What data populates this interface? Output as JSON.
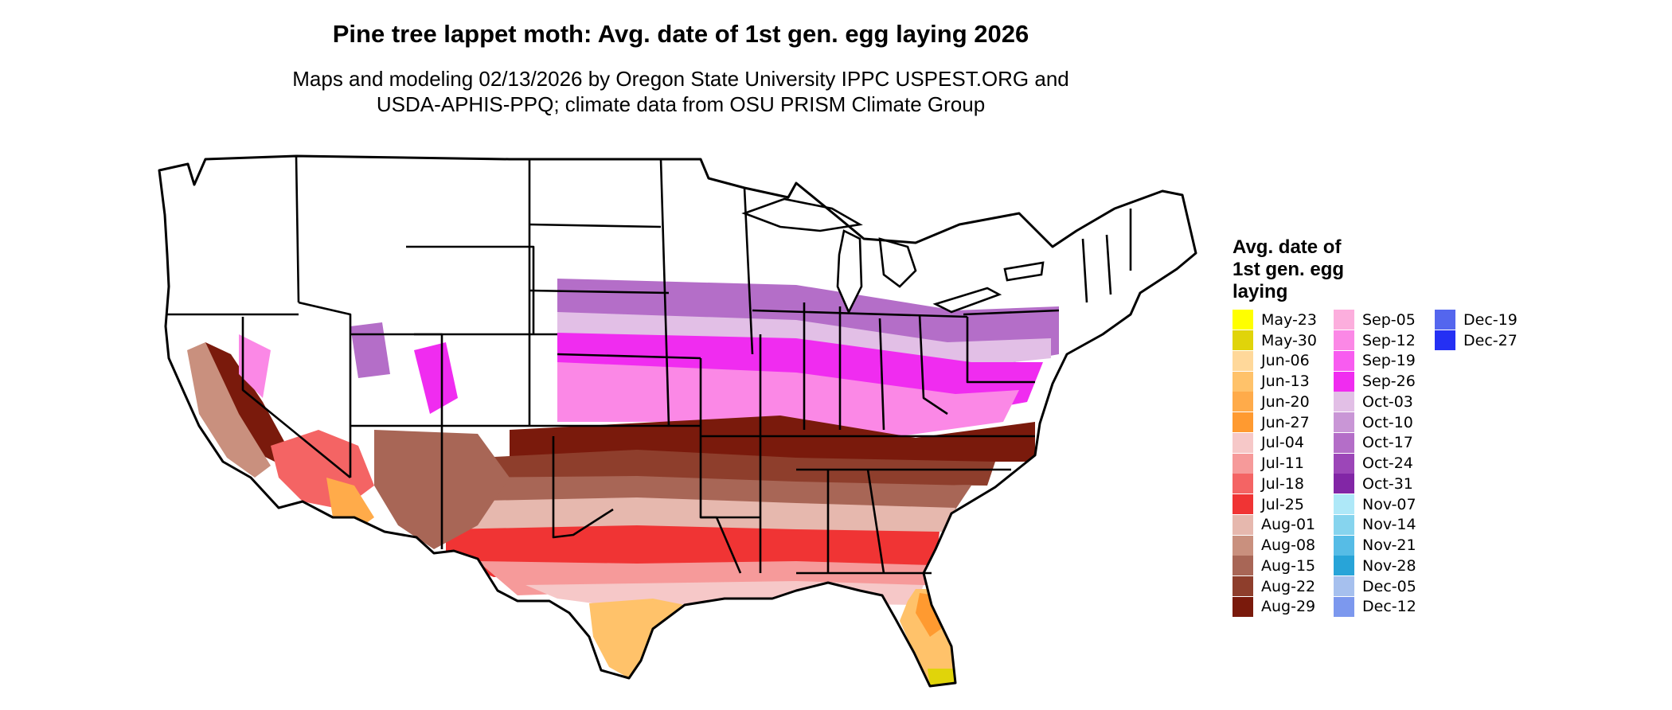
{
  "title": "Pine tree lappet moth: Avg. date of 1st gen. egg laying 2026",
  "subtitle_line1": "Maps and modeling 02/13/2026 by Oregon State University IPPC USPEST.ORG and",
  "subtitle_line2": "USDA-APHIS-PPQ; climate data from OSU PRISM Climate Group",
  "legend": {
    "title_line1": "Avg. date of",
    "title_line2": "1st gen. egg",
    "title_line3": "laying",
    "columns": [
      [
        {
          "label": "May-23",
          "color": "#ffff00"
        },
        {
          "label": "May-30",
          "color": "#e0d40a"
        },
        {
          "label": "Jun-06",
          "color": "#ffd89a"
        },
        {
          "label": "Jun-13",
          "color": "#ffc26a"
        },
        {
          "label": "Jun-20",
          "color": "#ffab4a"
        },
        {
          "label": "Jun-27",
          "color": "#ff9a30"
        },
        {
          "label": "Jul-04",
          "color": "#f6c8c8"
        },
        {
          "label": "Jul-11",
          "color": "#f69a9a"
        },
        {
          "label": "Jul-18",
          "color": "#f46464"
        },
        {
          "label": "Jul-25",
          "color": "#f03434"
        },
        {
          "label": "Aug-01",
          "color": "#e6b8ae"
        },
        {
          "label": "Aug-08",
          "color": "#c9907e"
        },
        {
          "label": "Aug-15",
          "color": "#a86656"
        },
        {
          "label": "Aug-22",
          "color": "#8e3e2c"
        },
        {
          "label": "Aug-29",
          "color": "#7a1a0c"
        }
      ],
      [
        {
          "label": "Sep-05",
          "color": "#fcaedd"
        },
        {
          "label": "Sep-12",
          "color": "#fb88e6"
        },
        {
          "label": "Sep-19",
          "color": "#f85cf0"
        },
        {
          "label": "Sep-26",
          "color": "#f02cf0"
        },
        {
          "label": "Oct-03",
          "color": "#e2bfe6"
        },
        {
          "label": "Oct-10",
          "color": "#c996d6"
        },
        {
          "label": "Oct-17",
          "color": "#b46ec8"
        },
        {
          "label": "Oct-24",
          "color": "#9c46b8"
        },
        {
          "label": "Oct-31",
          "color": "#8226a6"
        },
        {
          "label": "Nov-07",
          "color": "#aee8f8"
        },
        {
          "label": "Nov-14",
          "color": "#86d4ee"
        },
        {
          "label": "Nov-21",
          "color": "#56bce6"
        },
        {
          "label": "Nov-28",
          "color": "#28a4d8"
        },
        {
          "label": "Dec-05",
          "color": "#a6c0ee"
        },
        {
          "label": "Dec-12",
          "color": "#7c98ee"
        }
      ],
      [
        {
          "label": "Dec-19",
          "color": "#5466ee"
        },
        {
          "label": "Dec-27",
          "color": "#2430f4"
        }
      ]
    ]
  }
}
